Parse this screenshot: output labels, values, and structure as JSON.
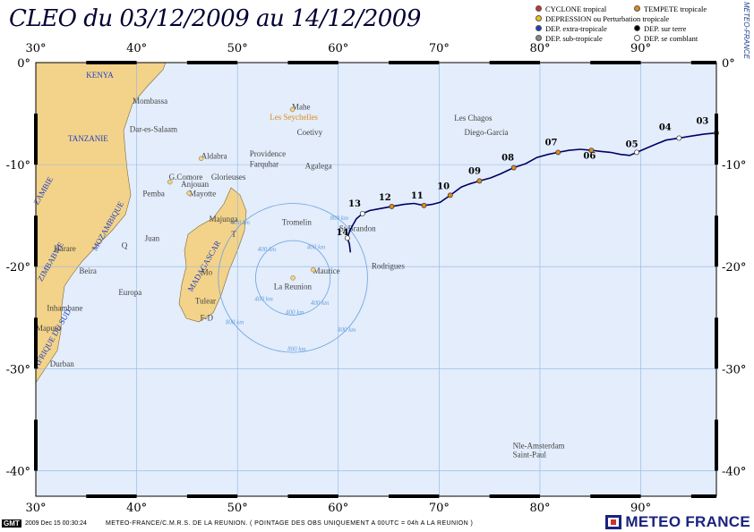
{
  "title": "CLEO du 03/12/2009 au 14/12/2009",
  "legend": [
    [
      "CYCLONE tropical",
      "#c0392b",
      "TEMPETE tropicale",
      "#e08a1e"
    ],
    [
      "DEPRESSION ou Perturbation tropicale",
      "#f1c40f",
      null,
      null
    ],
    [
      "DEP. extra-tropicale",
      "#1f3fbf",
      "DEP. sur terre",
      "#000000"
    ],
    [
      "DEP. sub-tropicale",
      "#888888",
      "DEP. se comblant",
      "#ffffff"
    ]
  ],
  "side_label": "METEO-FRANCE",
  "lon_labels": [
    "30°",
    "40°",
    "50°",
    "60°",
    "70°",
    "80°",
    "90°"
  ],
  "lat_labels": [
    "0°",
    "-10°",
    "-20°",
    "-30°",
    "-40°"
  ],
  "places": [
    [
      "KENYA",
      35,
      -1.5,
      "#1f3fbf",
      true
    ],
    [
      "Mombassa",
      39.6,
      -4.05,
      "#444",
      false
    ],
    [
      "Dar-es-Salaam",
      39.3,
      -6.8,
      "#444",
      false
    ],
    [
      "TANZANIE",
      33.2,
      -7.7,
      "#1f3fbf",
      true
    ],
    [
      "ZAMBIE",
      30.2,
      -14,
      "#1f3fbf",
      true
    ],
    [
      "Mahe",
      55.4,
      -4.6,
      "#444",
      false
    ],
    [
      "Les Seychelles",
      53.2,
      -5.6,
      "#e08a1e",
      false
    ],
    [
      "Coetivy",
      55.9,
      -7.1,
      "#444",
      false
    ],
    [
      "Providence",
      51.2,
      -9.2,
      "#444",
      false
    ],
    [
      "Farquhar",
      51.2,
      -10.2,
      "#444",
      false
    ],
    [
      "Aldabra",
      46.4,
      -9.4,
      "#444",
      false
    ],
    [
      "Agalega",
      56.7,
      -10.4,
      "#444",
      false
    ],
    [
      "Les Chagos",
      71.5,
      -5.7,
      "#444",
      false
    ],
    [
      "Diego-Garcia",
      72.5,
      -7.1,
      "#444",
      false
    ],
    [
      "G.Comore",
      43.2,
      -11.5,
      "#444",
      false
    ],
    [
      "Anjouan",
      44.4,
      -12.2,
      "#444",
      false
    ],
    [
      "Mayotte",
      45.2,
      -13.1,
      "#444",
      false
    ],
    [
      "Glorieuses",
      47.4,
      -11.5,
      "#444",
      false
    ],
    [
      "Pemba",
      40.6,
      -13.1,
      "#444",
      false
    ],
    [
      "Majunga",
      47.2,
      -15.6,
      "#444",
      false
    ],
    [
      "MOZAMBIQUE",
      36,
      -18.5,
      "#1f3fbf",
      true
    ],
    [
      "Tromelin",
      54.4,
      -15.9,
      "#444",
      false
    ],
    [
      "St Brandon",
      60.1,
      -16.5,
      "#444",
      false
    ],
    [
      "Juan",
      40.8,
      -17.5,
      "#444",
      false
    ],
    [
      "T",
      49.4,
      -17.1,
      "#444",
      false
    ],
    [
      "Q",
      38.5,
      -18.2,
      "#444",
      false
    ],
    [
      "Harare",
      31.8,
      -18.5,
      "#444",
      false
    ],
    [
      "Beira",
      34.3,
      -20.7,
      "#444",
      false
    ],
    [
      "MADAGASCAR",
      45.5,
      -22.5,
      "#1f3fbf",
      true
    ],
    [
      "Mo",
      46.4,
      -20.8,
      "#444",
      false
    ],
    [
      "Maurice",
      57.5,
      -20.7,
      "#444",
      false
    ],
    [
      "Rodrigues",
      63.3,
      -20.2,
      "#444",
      false
    ],
    [
      "La Reunion",
      53.6,
      -22.2,
      "#444",
      false
    ],
    [
      "Europa",
      38.2,
      -22.8,
      "#444",
      false
    ],
    [
      "Tulear",
      45.8,
      -23.6,
      "#444",
      false
    ],
    [
      "Inhambane",
      31.1,
      -24.3,
      "#444",
      false
    ],
    [
      "F-D",
      46.3,
      -25.3,
      "#444",
      false
    ],
    [
      "Maputo",
      30.0,
      -26.3,
      "#444",
      false
    ],
    [
      "AFRIQUE DU SUD",
      30.2,
      -30.0,
      "#1f3fbf",
      true
    ],
    [
      "ZIMBABWE",
      30.6,
      -21.5,
      "#1f3fbf",
      true
    ],
    [
      "Durban",
      31.4,
      -29.8,
      "#444",
      false
    ],
    [
      "Nle-Amsterdam",
      77.3,
      -37.8,
      "#444",
      false
    ],
    [
      "Saint-Paul",
      77.3,
      -38.7,
      "#444",
      false
    ]
  ],
  "rings": [
    [
      "400 km",
      55.5,
      -21.1,
      3.7
    ],
    [
      "800 km",
      55.5,
      -21.1,
      7.4
    ]
  ],
  "track": [
    [
      97.5,
      -6.9
    ],
    [
      96.3,
      -7.0
    ],
    [
      95.0,
      -7.2
    ],
    [
      93.8,
      -7.4
    ],
    [
      92.5,
      -7.6
    ],
    [
      91.5,
      -8.0
    ],
    [
      90.3,
      -8.5
    ],
    [
      89.6,
      -8.8
    ],
    [
      88.9,
      -9.1
    ],
    [
      88.0,
      -9.0
    ],
    [
      87.0,
      -8.8
    ],
    [
      86.0,
      -8.7
    ],
    [
      85.1,
      -8.6
    ],
    [
      84.0,
      -8.5
    ],
    [
      82.9,
      -8.6
    ],
    [
      81.8,
      -8.8
    ],
    [
      80.8,
      -9.0
    ],
    [
      79.7,
      -9.3
    ],
    [
      78.6,
      -9.9
    ],
    [
      77.4,
      -10.3
    ],
    [
      76.1,
      -10.9
    ],
    [
      75.1,
      -11.3
    ],
    [
      74.0,
      -11.6
    ],
    [
      73.0,
      -11.9
    ],
    [
      72.2,
      -12.2
    ],
    [
      71.1,
      -13.0
    ],
    [
      70.1,
      -13.7
    ],
    [
      69.3,
      -13.9
    ],
    [
      68.5,
      -14.0
    ],
    [
      67.5,
      -13.8
    ],
    [
      66.5,
      -13.9
    ],
    [
      65.3,
      -14.1
    ],
    [
      64.2,
      -14.3
    ],
    [
      63.1,
      -14.5
    ],
    [
      62.4,
      -14.8
    ],
    [
      61.8,
      -15.3
    ],
    [
      61.4,
      -16.0
    ],
    [
      61.1,
      -16.6
    ],
    [
      60.9,
      -17.2
    ],
    [
      61.1,
      -17.8
    ],
    [
      61.2,
      -18.6
    ]
  ],
  "markers": [
    [
      "03",
      97.5,
      -6.9,
      95.5,
      -6.0,
      "#ffffff"
    ],
    [
      "04",
      93.8,
      -7.4,
      91.8,
      -6.6,
      "#ffffff"
    ],
    [
      "05",
      89.6,
      -8.8,
      88.5,
      -8.3,
      "#ffffff"
    ],
    [
      "06",
      85.1,
      -8.6,
      84.3,
      -9.4,
      "#e08a1e"
    ],
    [
      "07",
      81.8,
      -8.8,
      80.5,
      -8.1,
      "#e08a1e"
    ],
    [
      "08",
      77.4,
      -10.3,
      76.2,
      -9.6,
      "#e08a1e"
    ],
    [
      "09",
      74.0,
      -11.6,
      72.9,
      -10.9,
      "#e08a1e"
    ],
    [
      "10",
      71.1,
      -13.0,
      69.8,
      -12.4,
      "#e08a1e"
    ],
    [
      "11",
      68.5,
      -14.0,
      67.2,
      -13.3,
      "#e08a1e"
    ],
    [
      "12",
      65.3,
      -14.1,
      64.0,
      -13.5,
      "#e08a1e"
    ],
    [
      "13",
      62.4,
      -14.8,
      61.0,
      -14.1,
      "#ffffff"
    ],
    [
      "14",
      60.9,
      -17.2,
      59.8,
      -16.9,
      "#ffffff"
    ]
  ],
  "footer": {
    "gmt": "GMT",
    "stamp": "2009 Dec 15 00:30:24",
    "credit": "METEO-FRANCE/C.M.R.S. DE LA REUNION. ( POINTAGE DES OBS UNIQUEMENT A 00UTC = 04h A LA REUNION )",
    "brand": "METEO FRANCE"
  },
  "colors": {
    "ocean": "#e3edfb",
    "land": "#f3d38a",
    "track": "#000066",
    "grid": "#8fb4e8",
    "ring": "#6aa0e0"
  }
}
